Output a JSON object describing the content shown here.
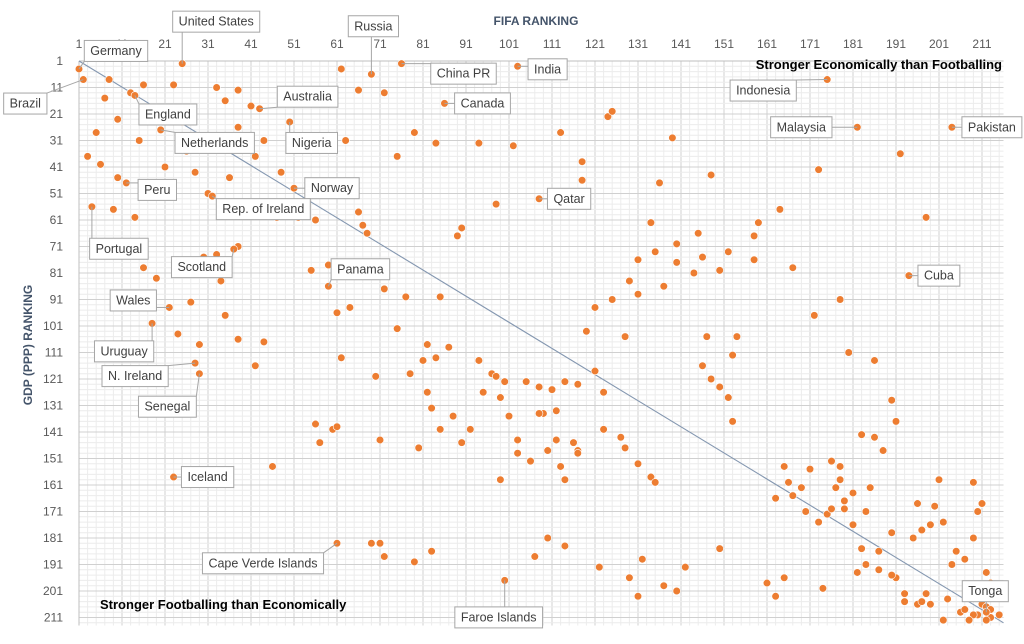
{
  "chart_data": {
    "type": "scatter",
    "title": "",
    "xlabel": "FIFA RANKING",
    "ylabel": "GDP (PPP) RANKING",
    "x_axis_position": "top",
    "y_axis_reversed": true,
    "xlim": [
      1,
      216
    ],
    "ylim": [
      1,
      214
    ],
    "x_ticks": [
      1,
      11,
      21,
      31,
      41,
      51,
      61,
      71,
      81,
      91,
      101,
      111,
      121,
      131,
      141,
      151,
      161,
      171,
      181,
      191,
      201,
      211
    ],
    "y_ticks": [
      1,
      11,
      21,
      31,
      41,
      51,
      61,
      71,
      81,
      91,
      101,
      111,
      121,
      131,
      141,
      151,
      161,
      171,
      181,
      191,
      201,
      211
    ],
    "grid": true,
    "marker_color": "#ed7d31",
    "trend_line": {
      "x": [
        1,
        216
      ],
      "y": [
        1,
        213
      ],
      "color": "#8497b0"
    },
    "annotations": [
      {
        "text": "Stronger Economically than Footballing",
        "x": 180,
        "y": 1
      },
      {
        "text": "Stronger Footballing than Economically",
        "x": 40,
        "y": 201
      }
    ],
    "labeled_points": [
      {
        "name": "Germany",
        "x": 1,
        "y": 4
      },
      {
        "name": "Brazil",
        "x": 2,
        "y": 8
      },
      {
        "name": "United States",
        "x": 25,
        "y": 2
      },
      {
        "name": "Russia",
        "x": 69,
        "y": 6
      },
      {
        "name": "China PR",
        "x": 76,
        "y": 2
      },
      {
        "name": "India",
        "x": 103,
        "y": 3
      },
      {
        "name": "England",
        "x": 14,
        "y": 14
      },
      {
        "name": "Australia",
        "x": 43,
        "y": 19
      },
      {
        "name": "Canada",
        "x": 86,
        "y": 17
      },
      {
        "name": "Indonesia",
        "x": 175,
        "y": 8
      },
      {
        "name": "Netherlands",
        "x": 20,
        "y": 27
      },
      {
        "name": "Nigeria",
        "x": 50,
        "y": 24
      },
      {
        "name": "Malaysia",
        "x": 182,
        "y": 26
      },
      {
        "name": "Pakistan",
        "x": 204,
        "y": 26
      },
      {
        "name": "Peru",
        "x": 12,
        "y": 47
      },
      {
        "name": "Norway",
        "x": 51,
        "y": 49
      },
      {
        "name": "Qatar",
        "x": 108,
        "y": 53
      },
      {
        "name": "Portugal",
        "x": 4,
        "y": 56
      },
      {
        "name": "Rep. of Ireland",
        "x": 32,
        "y": 52
      },
      {
        "name": "Scotland",
        "x": 37,
        "y": 72
      },
      {
        "name": "Panama",
        "x": 59,
        "y": 86
      },
      {
        "name": "Cuba",
        "x": 194,
        "y": 82
      },
      {
        "name": "Wales",
        "x": 22,
        "y": 94
      },
      {
        "name": "Uruguay",
        "x": 18,
        "y": 100
      },
      {
        "name": "N. Ireland",
        "x": 28,
        "y": 115
      },
      {
        "name": "Senegal",
        "x": 29,
        "y": 119
      },
      {
        "name": "Iceland",
        "x": 23,
        "y": 158
      },
      {
        "name": "Cape Verde Islands",
        "x": 61,
        "y": 183
      },
      {
        "name": "Faroe Islands",
        "x": 100,
        "y": 197
      },
      {
        "name": "Tonga",
        "x": 212,
        "y": 209
      }
    ],
    "other_points": [
      [
        8,
        8
      ],
      [
        16,
        10
      ],
      [
        23,
        10
      ],
      [
        7,
        15
      ],
      [
        13,
        13
      ],
      [
        10,
        23
      ],
      [
        5,
        28
      ],
      [
        15,
        31
      ],
      [
        3,
        37
      ],
      [
        6,
        40
      ],
      [
        10,
        45
      ],
      [
        17,
        48
      ],
      [
        21,
        41
      ],
      [
        28,
        43
      ],
      [
        31,
        51
      ],
      [
        36,
        45
      ],
      [
        9,
        57
      ],
      [
        14,
        60
      ],
      [
        33,
        11
      ],
      [
        38,
        12
      ],
      [
        35,
        16
      ],
      [
        41,
        18
      ],
      [
        25,
        24
      ],
      [
        38,
        26
      ],
      [
        26,
        35
      ],
      [
        44,
        31
      ],
      [
        42,
        37
      ],
      [
        48,
        43
      ],
      [
        47,
        60
      ],
      [
        52,
        60
      ],
      [
        56,
        61
      ],
      [
        16,
        79
      ],
      [
        19,
        83
      ],
      [
        27,
        92
      ],
      [
        30,
        75
      ],
      [
        33,
        74
      ],
      [
        34,
        84
      ],
      [
        38,
        71
      ],
      [
        35,
        97
      ],
      [
        24,
        104
      ],
      [
        29,
        108
      ],
      [
        38,
        106
      ],
      [
        44,
        107
      ],
      [
        42,
        116
      ],
      [
        46,
        154
      ],
      [
        62,
        4
      ],
      [
        66,
        12
      ],
      [
        72,
        13
      ],
      [
        75,
        37
      ],
      [
        63,
        31
      ],
      [
        66,
        58
      ],
      [
        79,
        28
      ],
      [
        84,
        32
      ],
      [
        94,
        32
      ],
      [
        102,
        33
      ],
      [
        113,
        28
      ],
      [
        118,
        39
      ],
      [
        124,
        22
      ],
      [
        125,
        20
      ],
      [
        118,
        46
      ],
      [
        139,
        30
      ],
      [
        148,
        44
      ],
      [
        164,
        57
      ],
      [
        173,
        42
      ],
      [
        192,
        36
      ],
      [
        198,
        60
      ],
      [
        136,
        47
      ],
      [
        134,
        62
      ],
      [
        98,
        55
      ],
      [
        89,
        67
      ],
      [
        90,
        64
      ],
      [
        67,
        63
      ],
      [
        68,
        66
      ],
      [
        55,
        80
      ],
      [
        59,
        78
      ],
      [
        61,
        96
      ],
      [
        77,
        90
      ],
      [
        72,
        87
      ],
      [
        85,
        90
      ],
      [
        64,
        94
      ],
      [
        75,
        102
      ],
      [
        82,
        108
      ],
      [
        87,
        109
      ],
      [
        84,
        113
      ],
      [
        94,
        114
      ],
      [
        97,
        119
      ],
      [
        98,
        120
      ],
      [
        100,
        122
      ],
      [
        105,
        122
      ],
      [
        108,
        124
      ],
      [
        114,
        122
      ],
      [
        117,
        123
      ],
      [
        121,
        118
      ],
      [
        62,
        113
      ],
      [
        70,
        120
      ],
      [
        78,
        119
      ],
      [
        83,
        132
      ],
      [
        85,
        140
      ],
      [
        88,
        135
      ],
      [
        92,
        140
      ],
      [
        99,
        128
      ],
      [
        101,
        135
      ],
      [
        103,
        144
      ],
      [
        109,
        134
      ],
      [
        111,
        125
      ],
      [
        112,
        133
      ],
      [
        112,
        144
      ],
      [
        116,
        145
      ],
      [
        117,
        148
      ],
      [
        123,
        140
      ],
      [
        123,
        126
      ],
      [
        127,
        143
      ],
      [
        128,
        147
      ],
      [
        131,
        153
      ],
      [
        134,
        158
      ],
      [
        135,
        160
      ],
      [
        114,
        159
      ],
      [
        113,
        154
      ],
      [
        117,
        149
      ],
      [
        110,
        148
      ],
      [
        106,
        152
      ],
      [
        103,
        149
      ],
      [
        99,
        159
      ],
      [
        108,
        134
      ],
      [
        56,
        138
      ],
      [
        60,
        140
      ],
      [
        61,
        139
      ],
      [
        57,
        145
      ],
      [
        71,
        144
      ],
      [
        80,
        147
      ],
      [
        82,
        126
      ],
      [
        90,
        145
      ],
      [
        95,
        126
      ],
      [
        81,
        114
      ],
      [
        119,
        103
      ],
      [
        121,
        94
      ],
      [
        125,
        91
      ],
      [
        128,
        105
      ],
      [
        131,
        89
      ],
      [
        129,
        84
      ],
      [
        131,
        76
      ],
      [
        137,
        86
      ],
      [
        140,
        77
      ],
      [
        135,
        73
      ],
      [
        140,
        70
      ],
      [
        145,
        66
      ],
      [
        146,
        75
      ],
      [
        147,
        105
      ],
      [
        150,
        80
      ],
      [
        152,
        73
      ],
      [
        158,
        67
      ],
      [
        158,
        76
      ],
      [
        154,
        105
      ],
      [
        153,
        112
      ],
      [
        150,
        124
      ],
      [
        152,
        128
      ],
      [
        146,
        116
      ],
      [
        153,
        137
      ],
      [
        144,
        81
      ],
      [
        159,
        62
      ],
      [
        148,
        121
      ],
      [
        165,
        154
      ],
      [
        166,
        160
      ],
      [
        163,
        166
      ],
      [
        167,
        165
      ],
      [
        169,
        162
      ],
      [
        170,
        171
      ],
      [
        173,
        175
      ],
      [
        171,
        155
      ],
      [
        175,
        172
      ],
      [
        176,
        170
      ],
      [
        177,
        162
      ],
      [
        179,
        167
      ],
      [
        178,
        154
      ],
      [
        181,
        164
      ],
      [
        184,
        171
      ],
      [
        185,
        162
      ],
      [
        183,
        142
      ],
      [
        186,
        143
      ],
      [
        188,
        148
      ],
      [
        191,
        137
      ],
      [
        190,
        129
      ],
      [
        186,
        114
      ],
      [
        180,
        111
      ],
      [
        178,
        91
      ],
      [
        172,
        97
      ],
      [
        167,
        79
      ],
      [
        176,
        152
      ],
      [
        178,
        159
      ],
      [
        179,
        170
      ],
      [
        181,
        176
      ],
      [
        183,
        185
      ],
      [
        187,
        186
      ],
      [
        190,
        179
      ],
      [
        195,
        181
      ],
      [
        197,
        178
      ],
      [
        199,
        176
      ],
      [
        200,
        169
      ],
      [
        202,
        175
      ],
      [
        201,
        159
      ],
      [
        196,
        168
      ],
      [
        187,
        193
      ],
      [
        191,
        196
      ],
      [
        193,
        202
      ],
      [
        193,
        205
      ],
      [
        196,
        206
      ],
      [
        198,
        202
      ],
      [
        199,
        206
      ],
      [
        203,
        204
      ],
      [
        204,
        191
      ],
      [
        205,
        186
      ],
      [
        207,
        189
      ],
      [
        209,
        181
      ],
      [
        210,
        171
      ],
      [
        209,
        160
      ],
      [
        211,
        168
      ],
      [
        212,
        194
      ],
      [
        213,
        198
      ],
      [
        214,
        200
      ],
      [
        211,
        206
      ],
      [
        212,
        207
      ],
      [
        215,
        210
      ],
      [
        206,
        209
      ],
      [
        210,
        210
      ],
      [
        209,
        210
      ],
      [
        213,
        208
      ],
      [
        213,
        211
      ],
      [
        212,
        212
      ],
      [
        208,
        212
      ],
      [
        202,
        212
      ],
      [
        207,
        208
      ],
      [
        197,
        205
      ],
      [
        190,
        195
      ],
      [
        184,
        191
      ],
      [
        182,
        194
      ],
      [
        174,
        200
      ],
      [
        165,
        196
      ],
      [
        163,
        203
      ],
      [
        161,
        198
      ],
      [
        150,
        185
      ],
      [
        142,
        192
      ],
      [
        140,
        201
      ],
      [
        137,
        199
      ],
      [
        132,
        189
      ],
      [
        131,
        203
      ],
      [
        129,
        196
      ],
      [
        122,
        192
      ],
      [
        114,
        184
      ],
      [
        110,
        181
      ],
      [
        107,
        188
      ],
      [
        83,
        186
      ],
      [
        79,
        190
      ],
      [
        72,
        188
      ],
      [
        71,
        183
      ],
      [
        69,
        183
      ]
    ]
  }
}
